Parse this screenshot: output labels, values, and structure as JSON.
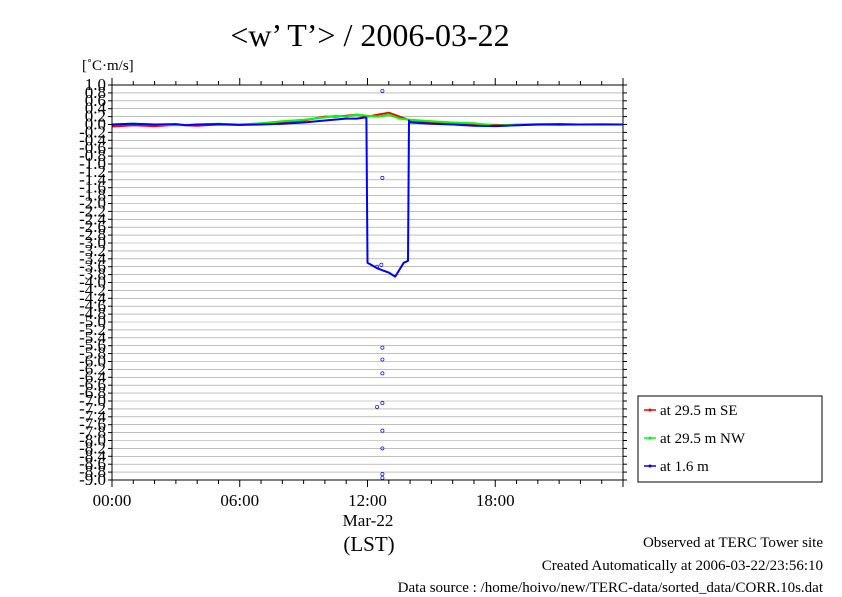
{
  "chart_data": {
    "type": "line",
    "title": "<w’ T’> / 2006-03-22",
    "ylabel": "[˚C·m/s]",
    "xlabel": "(LST)",
    "date_label": "Mar-22",
    "ylim": [
      -9.0,
      1.0
    ],
    "yticks": [
      "1.0",
      "0.8",
      "0.6",
      "0.4",
      "0.2",
      "0.0",
      "-0.2",
      "-0.4",
      "-0.6",
      "-0.8",
      "-1.0",
      "-1.2",
      "-1.4",
      "-1.6",
      "-1.8",
      "-2.0",
      "-2.2",
      "-2.4",
      "-2.6",
      "-2.8",
      "-3.0",
      "-3.2",
      "-3.4",
      "-3.6",
      "-3.8",
      "-4.0",
      "-4.2",
      "-4.4",
      "-4.6",
      "-4.8",
      "-5.0",
      "-5.2",
      "-5.4",
      "-5.6",
      "-5.8",
      "-6.0",
      "-6.2",
      "-6.4",
      "-6.6",
      "-6.8",
      "-7.0",
      "-7.2",
      "-7.4",
      "-7.6",
      "-7.8",
      "-8.0",
      "-8.2",
      "-8.4",
      "-8.6",
      "-8.8",
      "-9.0"
    ],
    "xlim": [
      0,
      24
    ],
    "xticks": [
      {
        "h": 0,
        "label": "00:00"
      },
      {
        "h": 6,
        "label": "06:00"
      },
      {
        "h": 12,
        "label": "12:00"
      },
      {
        "h": 18,
        "label": "18:00"
      }
    ],
    "grid": true,
    "legend_position": "bottom-right outside",
    "series": [
      {
        "name": "at 29.5 m SE",
        "color": "#ff0000",
        "x": [
          0,
          1,
          2,
          3,
          4,
          5,
          6,
          7,
          8,
          9,
          10,
          10.5,
          11,
          11.5,
          12,
          12.5,
          13,
          13.5,
          14,
          15,
          16,
          17,
          18,
          19,
          20,
          21,
          22,
          23,
          24
        ],
        "y": [
          -0.05,
          -0.02,
          -0.04,
          -0.01,
          -0.03,
          0.0,
          -0.01,
          0.02,
          0.05,
          0.1,
          0.2,
          0.2,
          0.22,
          0.25,
          0.2,
          0.25,
          0.3,
          0.2,
          0.1,
          0.05,
          0.02,
          0.0,
          -0.01,
          -0.02,
          0.0,
          -0.01,
          0.0,
          0.0,
          0.0
        ]
      },
      {
        "name": "at 29.5 m NW",
        "color": "#00ff00",
        "x": [
          0,
          1,
          2,
          3,
          4,
          5,
          6,
          7,
          8,
          9,
          10,
          10.5,
          11,
          11.5,
          12,
          12.5,
          13,
          13.5,
          14,
          15,
          16,
          17,
          18,
          19,
          20,
          21,
          22,
          23,
          24
        ],
        "y": [
          0.0,
          0.02,
          0.0,
          -0.02,
          0.0,
          0.02,
          0.0,
          0.03,
          0.08,
          0.12,
          0.18,
          0.22,
          0.2,
          0.25,
          0.22,
          0.2,
          0.25,
          0.15,
          0.12,
          0.08,
          0.05,
          0.03,
          -0.03,
          0.0,
          0.01,
          0.0,
          0.0,
          0.01,
          0.0
        ]
      },
      {
        "name": "at 1.6 m",
        "color": "#0000ff",
        "x": [
          0,
          1,
          2,
          3,
          3.5,
          4,
          5,
          6,
          7,
          8,
          9,
          10,
          11,
          11.5,
          11.9,
          11.95,
          12,
          12.5,
          13,
          13.3,
          13.7,
          13.9,
          13.95,
          14,
          15,
          16,
          17,
          18,
          19,
          20,
          21,
          22,
          23,
          24
        ],
        "y": [
          0.0,
          0.02,
          0.0,
          0.01,
          -0.02,
          0.0,
          0.01,
          -0.01,
          0.0,
          0.02,
          0.05,
          0.1,
          0.15,
          0.15,
          0.18,
          0.15,
          -3.5,
          -3.65,
          -3.75,
          -3.85,
          -3.5,
          -3.45,
          0.1,
          0.05,
          0.02,
          0.0,
          -0.03,
          -0.04,
          -0.02,
          0.0,
          0.01,
          0.0,
          0.0,
          0.0
        ]
      }
    ],
    "scatter_points": {
      "name": "1.6 m markers",
      "color": "#0000ff",
      "x": [
        12.7,
        12.7,
        12.7,
        12.7,
        12.65,
        12.7,
        12.7,
        12.7,
        12.7,
        12.45,
        12.7,
        12.7,
        12.45
      ],
      "y": [
        0.85,
        -1.35,
        -7.75,
        -8.85,
        -3.55,
        -5.65,
        -5.95,
        -6.3,
        -7.05,
        -7.15,
        -8.2,
        -8.95,
        -3.6
      ]
    }
  },
  "footer": {
    "observed": "Observed at TERC Tower site",
    "created": "Created Automatically at 2006-03-22/23:56:10",
    "source": "Data source : /home/hoivo/new/TERC-data/sorted_data/CORR.10s.dat"
  }
}
